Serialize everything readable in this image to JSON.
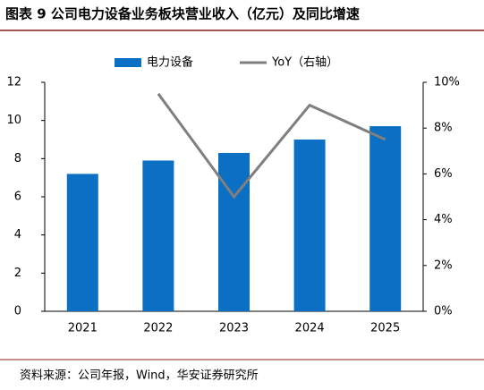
{
  "chart_data": {
    "type": "bar",
    "title": "图表 9 公司电力设备业务板块营业收入（亿元）及同比增速",
    "source": "资料来源：公司年报，Wind，华安证券研究所",
    "categories": [
      "2021",
      "2022",
      "2023",
      "2024",
      "2025"
    ],
    "series": [
      {
        "name": "电力设备",
        "type": "bar",
        "color": "#0b6fc4",
        "values": [
          7.2,
          7.9,
          8.3,
          9.0,
          9.7
        ]
      },
      {
        "name": "YoY（右轴）",
        "type": "line",
        "axis": "y2",
        "color": "#7f7f7f",
        "values": [
          null,
          9.5,
          5.0,
          9.0,
          7.5
        ]
      }
    ],
    "ylim": [
      0,
      12
    ],
    "yticks": [
      0,
      2,
      4,
      6,
      8,
      10,
      12
    ],
    "y2lim": [
      0,
      10
    ],
    "y2ticks": [
      {
        "value": 0,
        "label": "0%"
      },
      {
        "value": 2,
        "label": "2%"
      },
      {
        "value": 4,
        "label": "4%"
      },
      {
        "value": 6,
        "label": "6%"
      },
      {
        "value": 8,
        "label": "8%"
      },
      {
        "value": 10,
        "label": "10%"
      }
    ],
    "legend": "top"
  }
}
